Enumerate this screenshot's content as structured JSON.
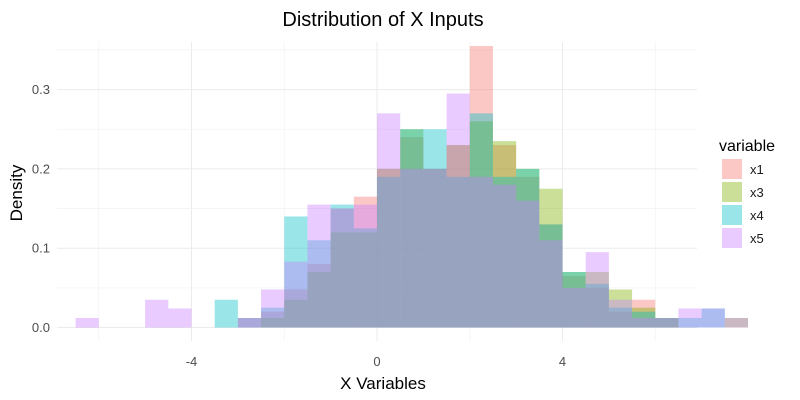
{
  "chart_data": {
    "type": "histogram",
    "title": "Distribution of X Inputs",
    "xlabel": "X Variables",
    "ylabel": "Density",
    "xlim": [
      -6.9,
      6.9
    ],
    "ylim": [
      -0.017,
      0.36
    ],
    "x_ticks": [
      -4,
      0,
      4
    ],
    "y_ticks": [
      0.0,
      0.1,
      0.2,
      0.3
    ],
    "grid": true,
    "bin_start": -6.5,
    "bin_width": 0.5,
    "legend": {
      "title": "variable",
      "position": "right"
    },
    "series": [
      {
        "name": "x1",
        "color": "#F8766D",
        "values": [
          0,
          0,
          0,
          0,
          0,
          0,
          0,
          0.012,
          0.02,
          0.048,
          0.08,
          0.15,
          0.165,
          0.2,
          0.24,
          0.2,
          0.23,
          0.355,
          0.23,
          0.19,
          0.13,
          0.065,
          0.05,
          0.02,
          0.035,
          0.012,
          0,
          0,
          0
        ]
      },
      {
        "name": "x3",
        "color": "#7CAE00",
        "values": [
          0,
          0,
          0,
          0,
          0,
          0,
          0,
          0,
          0.012,
          0.035,
          0.07,
          0.12,
          0.12,
          0.2,
          0.25,
          0.2,
          0.23,
          0.26,
          0.235,
          0.2,
          0.175,
          0.07,
          0.07,
          0.048,
          0.025,
          0.012,
          0,
          0,
          0.012
        ]
      },
      {
        "name": "x4",
        "color": "#00BFC4",
        "values": [
          0,
          0,
          0,
          0,
          0,
          0,
          0.035,
          0.012,
          0.025,
          0.14,
          0.11,
          0.155,
          0.125,
          0.19,
          0.25,
          0.25,
          0.19,
          0.27,
          0.19,
          0.2,
          0.13,
          0.07,
          0.055,
          0.025,
          0.02,
          0.012,
          0.012,
          0.024,
          0
        ]
      },
      {
        "name": "x5",
        "color": "#C77CFF",
        "values": [
          0.012,
          0,
          0,
          0.035,
          0.024,
          0,
          0,
          0.012,
          0.048,
          0.083,
          0.155,
          0.15,
          0.155,
          0.27,
          0.2,
          0.2,
          0.295,
          0.19,
          0.18,
          0.16,
          0.11,
          0.05,
          0.095,
          0.035,
          0.012,
          0.012,
          0.024,
          0.024,
          0.012
        ]
      }
    ]
  }
}
